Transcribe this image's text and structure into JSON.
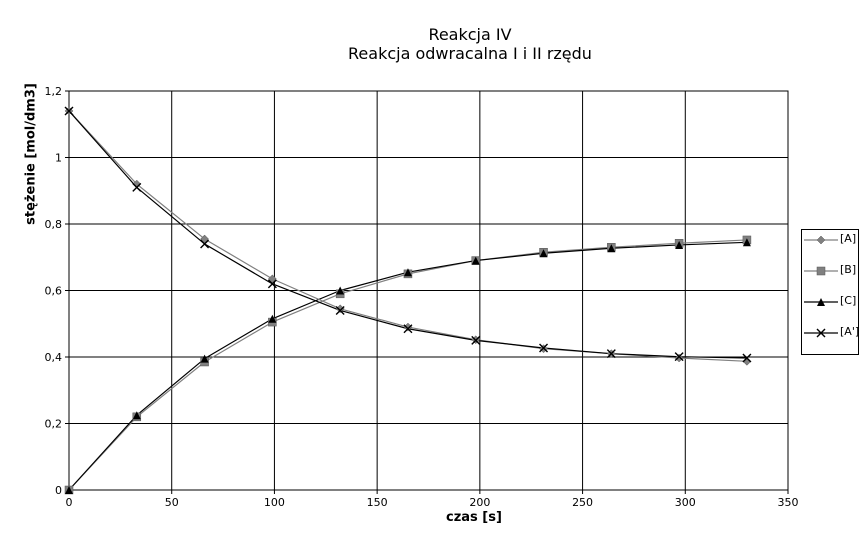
{
  "chart_data": {
    "type": "line",
    "title": "Reakcja IV",
    "subtitle": "Reakcja odwracalna I i II rzędu",
    "xlabel": "czas [s]",
    "ylabel": "stężenie [mol/dm3]",
    "xlim": [
      0,
      350
    ],
    "ylim": [
      0,
      1.2
    ],
    "xticks": [
      "0",
      "50",
      "100",
      "150",
      "200",
      "250",
      "300",
      "350"
    ],
    "yticks": [
      "0",
      "0,2",
      "0,4",
      "0,6",
      "0,8",
      "1",
      "1,2"
    ],
    "grid": true,
    "legend_position": "right",
    "series": [
      {
        "name": "[A]",
        "marker": "diamond",
        "color": "#808080",
        "x": [
          0,
          33,
          66,
          99,
          132,
          165,
          198,
          231,
          264,
          297,
          330
        ],
        "y": [
          1.14,
          0.92,
          0.755,
          0.635,
          0.545,
          0.49,
          0.452,
          0.425,
          0.41,
          0.397,
          0.387
        ]
      },
      {
        "name": "[B]",
        "marker": "square",
        "color": "#808080",
        "x": [
          0,
          33,
          66,
          99,
          132,
          165,
          198,
          231,
          264,
          297,
          330
        ],
        "y": [
          0,
          0.22,
          0.385,
          0.505,
          0.59,
          0.65,
          0.69,
          0.715,
          0.73,
          0.742,
          0.752
        ]
      },
      {
        "name": "[C]",
        "marker": "triangle",
        "color": "#000000",
        "x": [
          0,
          33,
          66,
          99,
          132,
          165,
          198,
          231,
          264,
          297,
          330
        ],
        "y": [
          0,
          0.225,
          0.395,
          0.515,
          0.6,
          0.655,
          0.69,
          0.712,
          0.727,
          0.737,
          0.745
        ]
      },
      {
        "name": "[A']",
        "marker": "x",
        "color": "#000000",
        "x": [
          0,
          33,
          66,
          99,
          132,
          165,
          198,
          231,
          264,
          297,
          330
        ],
        "y": [
          1.14,
          0.91,
          0.74,
          0.62,
          0.54,
          0.485,
          0.45,
          0.427,
          0.41,
          0.401,
          0.397
        ]
      }
    ]
  }
}
